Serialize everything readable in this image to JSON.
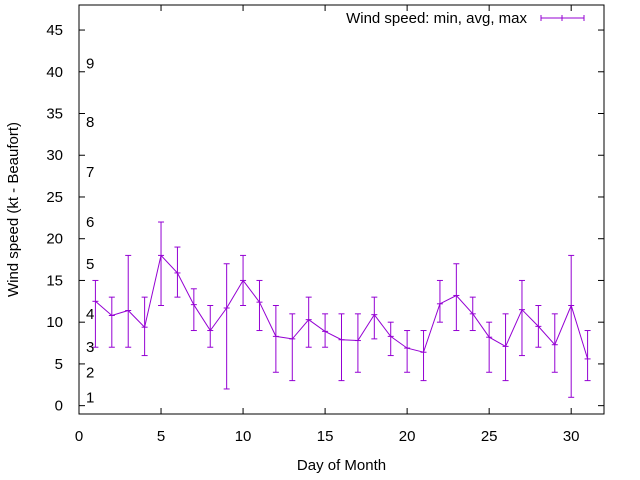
{
  "chart_data": {
    "type": "line",
    "title": "",
    "xlabel": "Day of Month",
    "ylabel": "Wind speed (kt - Beaufort)",
    "xlim": [
      0,
      32
    ],
    "ylim": [
      -1,
      48
    ],
    "xticks": [
      0,
      5,
      10,
      15,
      20,
      25,
      30
    ],
    "yticks": [
      0,
      5,
      10,
      15,
      20,
      25,
      30,
      35,
      40,
      45
    ],
    "grid": false,
    "legend_position": "top-right",
    "beaufort_labels": [
      {
        "label": "1",
        "y": 1
      },
      {
        "label": "2",
        "y": 4
      },
      {
        "label": "3",
        "y": 7
      },
      {
        "label": "4",
        "y": 11
      },
      {
        "label": "5",
        "y": 17
      },
      {
        "label": "6",
        "y": 22
      },
      {
        "label": "7",
        "y": 28
      },
      {
        "label": "8",
        "y": 34
      },
      {
        "label": "9",
        "y": 41
      }
    ],
    "series": [
      {
        "name": "Wind speed: min, avg, max",
        "color": "#9400d3",
        "x": [
          1,
          2,
          3,
          4,
          5,
          6,
          7,
          8,
          9,
          10,
          11,
          12,
          13,
          14,
          15,
          16,
          17,
          18,
          19,
          20,
          21,
          22,
          23,
          24,
          25,
          26,
          27,
          28,
          29,
          30,
          31
        ],
        "avg": [
          12.5,
          10.8,
          11.4,
          9.4,
          18.0,
          15.9,
          12.1,
          9.0,
          11.7,
          15.0,
          12.4,
          8.3,
          8.0,
          10.3,
          8.9,
          7.9,
          7.8,
          10.9,
          8.3,
          6.9,
          6.4,
          12.2,
          13.2,
          11.0,
          8.2,
          7.1,
          11.5,
          9.5,
          7.3,
          12.0,
          5.6
        ],
        "min": [
          7,
          7,
          7,
          6,
          12,
          13,
          9,
          7,
          2,
          12,
          9,
          4,
          3,
          7,
          7,
          3,
          4,
          8,
          6,
          4,
          3,
          10,
          9,
          9,
          4,
          3,
          6,
          7,
          4,
          1,
          3
        ],
        "max": [
          15,
          13,
          18,
          13,
          22,
          19,
          14,
          12,
          17,
          18,
          15,
          12,
          11,
          13,
          11,
          11,
          11,
          13,
          10,
          9,
          9,
          15,
          17,
          13,
          10,
          11,
          15,
          12,
          11,
          18,
          9
        ]
      }
    ]
  }
}
